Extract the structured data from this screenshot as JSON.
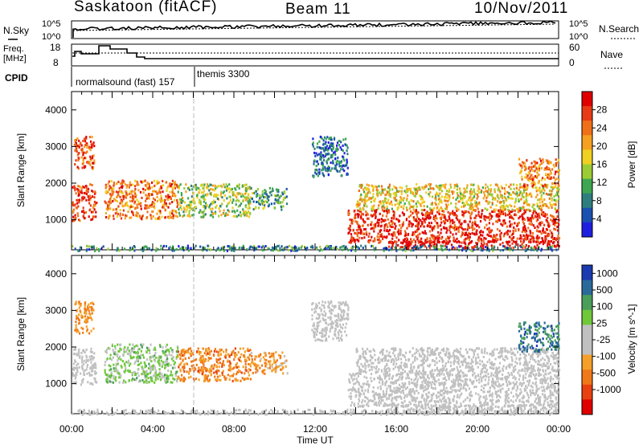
{
  "header": {
    "station": "Saskatoon (fitACF)",
    "beam": "Beam 11",
    "date": "10/Nov/2011"
  },
  "noise_panel": {
    "left_label": "N.Sky",
    "right_label": "N.Search",
    "left_ticks": [
      "10^5",
      "10^0"
    ],
    "right_ticks": [
      "10^5",
      "10^0"
    ]
  },
  "freq_panel": {
    "left_label_line1": "Freq.",
    "left_label_line2": "[MHz]",
    "right_label": "Nave",
    "left_ticks": [
      "18",
      "8"
    ],
    "right_ticks": [
      "60",
      "0"
    ]
  },
  "cpid": {
    "label": "CPID",
    "modes": [
      "normalsound (fast) 157",
      "themis 3300"
    ]
  },
  "chart_data": [
    {
      "type": "heatmap",
      "title": "",
      "quantity": "Power",
      "xlabel": "",
      "ylabel": "Slant Range [km]",
      "colorbar_label": "Power [dB]",
      "colorbar_ticks": [
        "28",
        "24",
        "20",
        "16",
        "12",
        "8",
        "4"
      ],
      "colorbar_range": [
        0,
        30
      ],
      "colors": [
        "#1f1fe0",
        "#1a50b0",
        "#2f7e7e",
        "#3ea650",
        "#9ccc35",
        "#f0d020",
        "#f5a020",
        "#f07018",
        "#e83a14",
        "#e00000"
      ],
      "xlim_hours": [
        0,
        24
      ],
      "ylim_km": [
        180,
        4500
      ],
      "yticks": [
        "1000",
        "2000",
        "3000",
        "4000"
      ],
      "regions": [
        {
          "t": [
            0.0,
            1.2
          ],
          "r": [
            1000,
            2000
          ],
          "v": 26
        },
        {
          "t": [
            0.1,
            1.1
          ],
          "r": [
            2400,
            3300
          ],
          "v": 24
        },
        {
          "t": [
            1.6,
            5.2
          ],
          "r": [
            1050,
            2100
          ],
          "v": 22
        },
        {
          "t": [
            5.2,
            8.8
          ],
          "r": [
            1100,
            2000
          ],
          "v": 14
        },
        {
          "t": [
            8.8,
            10.6
          ],
          "r": [
            1300,
            1900
          ],
          "v": 10
        },
        {
          "t": [
            11.8,
            13.6
          ],
          "r": [
            2200,
            3300
          ],
          "v": 6
        },
        {
          "t": [
            13.6,
            24.0
          ],
          "r": [
            400,
            1300
          ],
          "v": 27
        },
        {
          "t": [
            14.0,
            24.0
          ],
          "r": [
            1300,
            2000
          ],
          "v": 17
        },
        {
          "t": [
            15.5,
            24.0
          ],
          "r": [
            250,
            450
          ],
          "v": 30
        },
        {
          "t": [
            22.0,
            24.0
          ],
          "r": [
            1900,
            2700
          ],
          "v": 22
        },
        {
          "t": [
            0.0,
            24.0
          ],
          "r": [
            180,
            320
          ],
          "v": 8
        }
      ]
    },
    {
      "type": "heatmap",
      "title": "",
      "quantity": "Velocity",
      "xlabel": "Time UT",
      "ylabel": "Slant Range [km]",
      "colorbar_label": "Velocity [m s^-1]",
      "colorbar_ticks": [
        "1000",
        "500",
        "100",
        "25",
        "-25",
        "-100",
        "-500",
        "-1000"
      ],
      "colorbar_range": [
        -1000,
        1000
      ],
      "colors": [
        "#e00000",
        "#e84010",
        "#f07818",
        "#f5a028",
        "#c0c0c0",
        "#c0c0c0",
        "#6ec83a",
        "#4a9e5a",
        "#2a6a9a",
        "#1a3ab0"
      ],
      "xlim_hours": [
        0,
        24
      ],
      "xticks": [
        "00:00",
        "04:00",
        "08:00",
        "12:00",
        "16:00",
        "20:00",
        "00:00"
      ],
      "ylim_km": [
        180,
        4500
      ],
      "yticks": [
        "1000",
        "2000",
        "3000",
        "4000"
      ],
      "regions": [
        {
          "t": [
            0.0,
            1.2
          ],
          "r": [
            1000,
            2000
          ],
          "v": 0
        },
        {
          "t": [
            0.1,
            1.1
          ],
          "r": [
            2400,
            3300
          ],
          "v": -400
        },
        {
          "t": [
            1.6,
            5.2
          ],
          "r": [
            1050,
            2100
          ],
          "v": 250
        },
        {
          "t": [
            5.2,
            8.8
          ],
          "r": [
            1100,
            2000
          ],
          "v": -450
        },
        {
          "t": [
            8.8,
            10.6
          ],
          "r": [
            1300,
            1900
          ],
          "v": -350
        },
        {
          "t": [
            11.8,
            13.6
          ],
          "r": [
            2200,
            3300
          ],
          "v": 0
        },
        {
          "t": [
            13.6,
            24.0
          ],
          "r": [
            400,
            1300
          ],
          "v": 0
        },
        {
          "t": [
            14.0,
            24.0
          ],
          "r": [
            1300,
            2000
          ],
          "v": 0
        },
        {
          "t": [
            15.5,
            24.0
          ],
          "r": [
            250,
            450
          ],
          "v": 0
        },
        {
          "t": [
            22.0,
            24.0
          ],
          "r": [
            1900,
            2700
          ],
          "v": 650
        },
        {
          "t": [
            0.0,
            24.0
          ],
          "r": [
            180,
            320
          ],
          "v": 0
        }
      ]
    }
  ]
}
